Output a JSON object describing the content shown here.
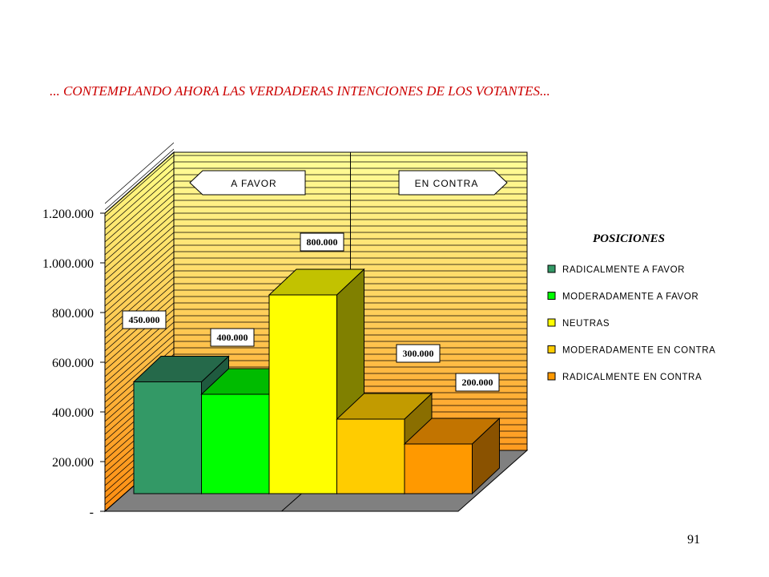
{
  "title": "... CONTEMPLANDO AHORA LAS VERDADERAS INTENCIONES DE LOS VOTANTES...",
  "page_number": "91",
  "chart_data": {
    "type": "bar",
    "style": "3d-clustered-column",
    "categories": [
      ""
    ],
    "series": [
      {
        "name": "RADICALMENTE A FAVOR",
        "value": 450000,
        "label": "450.000",
        "color": "#339966",
        "top_color": "#25694a",
        "side_color": "#1f5a3f"
      },
      {
        "name": "MODERADAMENTE A FAVOR",
        "value": 400000,
        "label": "400.000",
        "color": "#00ff00",
        "top_color": "#00bb00",
        "side_color": "#009900"
      },
      {
        "name": "NEUTRAS",
        "value": 800000,
        "label": "800.000",
        "color": "#ffff00",
        "top_color": "#c2c200",
        "side_color": "#808000"
      },
      {
        "name": "MODERADAMENTE EN CONTRA",
        "value": 300000,
        "label": "300.000",
        "color": "#ffcc00",
        "top_color": "#c29b00",
        "side_color": "#8a6e00"
      },
      {
        "name": "RADICALMENTE EN CONTRA",
        "value": 200000,
        "label": "200.000",
        "color": "#ff9900",
        "top_color": "#c27400",
        "side_color": "#8a5200"
      }
    ],
    "y_ticks": [
      "-",
      "200.000",
      "400.000",
      "600.000",
      "800.000",
      "1.000.000",
      "1.200.000"
    ],
    "ylim": [
      0,
      1200000
    ],
    "grid": true,
    "group_labels": [
      "A FAVOR",
      "EN CONTRA"
    ],
    "legend": {
      "title": "POSICIONES",
      "position": "right"
    }
  }
}
